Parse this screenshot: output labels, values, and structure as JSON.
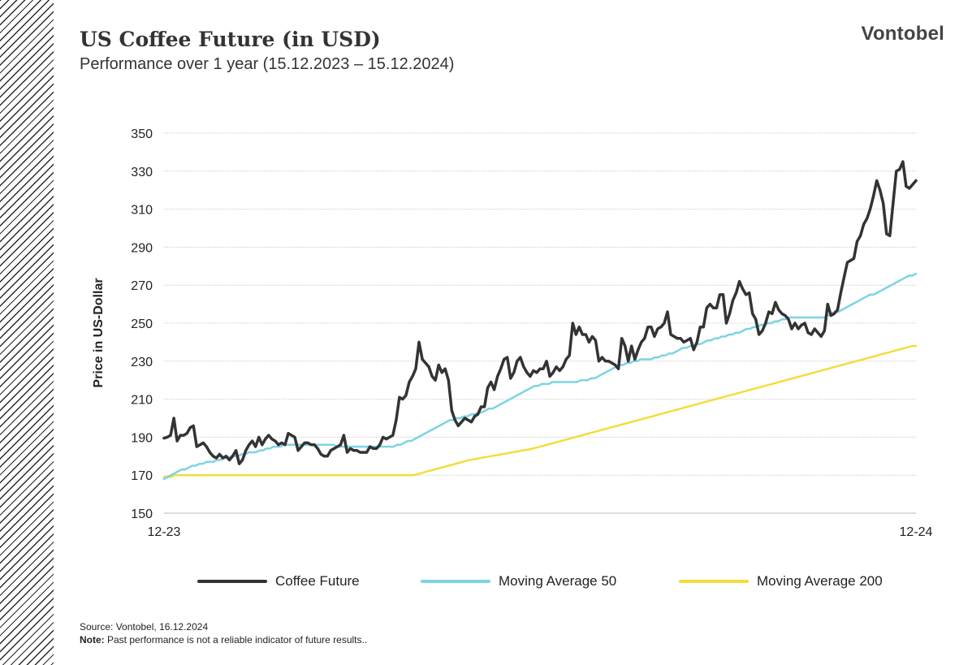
{
  "header": {
    "title": "US Coffee Future (in USD)",
    "subtitle": "Performance over 1 year (15.12.2023 – 15.12.2024)",
    "brand": "Vontobel"
  },
  "footer": {
    "source": "Source: Vontobel,  16.12.2024",
    "note_label": "Note:",
    "note_text": " Past performance  is not a reliable indicator of future results.."
  },
  "chart_data": {
    "type": "line",
    "ylabel": "Price in US-Dollar",
    "xlabel": "",
    "ylim": [
      150,
      350
    ],
    "yticks": [
      150,
      170,
      190,
      210,
      230,
      250,
      270,
      290,
      310,
      330,
      350
    ],
    "xtick_labels": [
      "12-23",
      "12-24"
    ],
    "grid": "horizontal",
    "legend_position": "bottom",
    "series": [
      {
        "name": "Coffee Future",
        "color": "#333333",
        "values": [
          189.5,
          190,
          191,
          200,
          188,
          191,
          191,
          192,
          195,
          196,
          185,
          186,
          187,
          185,
          182,
          180,
          179,
          181,
          179,
          180,
          178,
          180,
          183,
          176,
          178,
          183,
          186,
          188,
          185,
          190,
          186,
          189,
          191,
          189,
          188,
          186,
          187,
          186,
          192,
          191,
          190,
          183,
          185,
          187,
          187,
          186,
          186,
          184,
          181,
          180,
          180,
          183,
          184,
          185,
          186,
          191,
          182,
          184,
          183,
          183,
          182,
          182,
          182,
          185,
          184,
          184,
          186,
          190,
          189,
          190,
          191,
          199,
          211,
          210,
          212,
          219,
          222,
          226,
          240,
          231,
          229,
          227,
          222,
          220,
          228,
          224,
          226,
          220,
          204,
          199,
          196,
          198,
          200,
          199,
          198,
          201,
          202,
          206,
          206,
          216,
          219,
          215,
          222,
          226,
          231,
          232,
          221,
          224,
          230,
          232,
          227,
          224,
          222,
          225,
          224,
          226,
          226,
          230,
          222,
          224,
          227,
          225,
          227,
          231,
          233,
          250,
          244,
          248,
          244,
          244,
          240,
          243,
          241,
          230,
          232,
          230,
          230,
          229,
          228,
          226,
          242,
          238,
          230,
          238,
          231,
          236,
          240,
          242,
          248,
          248,
          243,
          247,
          248,
          250,
          256,
          244,
          243,
          242,
          242,
          240,
          241,
          242,
          236,
          240,
          248,
          248,
          258,
          260,
          258,
          258,
          265,
          265,
          250,
          255,
          262,
          266,
          272,
          268,
          265,
          266,
          255,
          252,
          244,
          246,
          250,
          256,
          255,
          261,
          257,
          255,
          254,
          252,
          247,
          250,
          247,
          249,
          250,
          245,
          244,
          247,
          245,
          243,
          246,
          260,
          254,
          255,
          257,
          266,
          274,
          282,
          283,
          284,
          293,
          296,
          302,
          305,
          310,
          317,
          325,
          320,
          313,
          297,
          296,
          313,
          330,
          331,
          335,
          322,
          321,
          323,
          325
        ]
      },
      {
        "name": "Moving Average 50",
        "color": "#7dd3e3",
        "values": [
          168,
          169,
          170,
          171,
          172,
          173,
          173,
          174,
          175,
          175,
          176,
          176,
          177,
          177,
          177,
          178,
          178,
          179,
          179,
          180,
          180,
          180,
          181,
          181,
          182,
          182,
          182,
          183,
          183,
          184,
          184,
          185,
          185,
          185,
          186,
          186,
          186,
          186,
          186,
          186,
          186,
          186,
          186,
          186,
          186,
          186,
          186,
          186,
          186,
          185,
          185,
          185,
          185,
          185,
          185,
          185,
          185,
          185,
          185,
          185,
          185,
          185,
          185,
          185,
          185,
          185,
          186,
          186,
          187,
          188,
          188,
          189,
          190,
          191,
          192,
          193,
          194,
          195,
          196,
          197,
          198,
          199,
          199,
          200,
          200,
          201,
          201,
          202,
          202,
          203,
          203,
          204,
          205,
          205,
          206,
          207,
          208,
          209,
          210,
          211,
          212,
          213,
          214,
          215,
          216,
          217,
          217,
          218,
          218,
          218,
          219,
          219,
          219,
          219,
          219,
          219,
          219,
          219,
          220,
          220,
          220,
          221,
          221,
          222,
          223,
          224,
          225,
          226,
          227,
          228,
          228,
          229,
          229,
          230,
          230,
          231,
          231,
          231,
          231,
          232,
          232,
          233,
          233,
          234,
          234,
          235,
          236,
          237,
          237,
          238,
          238,
          239,
          239,
          240,
          241,
          241,
          242,
          242,
          243,
          243,
          244,
          244,
          245,
          245,
          246,
          247,
          247,
          248,
          248,
          249,
          249,
          250,
          250,
          251,
          251,
          252,
          252,
          253,
          253,
          253,
          253,
          253,
          253,
          253,
          253,
          253,
          253,
          253,
          254,
          255,
          256,
          256,
          257,
          258,
          259,
          260,
          261,
          262,
          263,
          264,
          265,
          265,
          266,
          267,
          268,
          269,
          270,
          271,
          272,
          273,
          274,
          275,
          275,
          276
        ]
      },
      {
        "name": "Moving Average 200",
        "color": "#f5dc3c",
        "values": [
          169,
          169,
          169,
          170,
          170,
          170,
          170,
          170,
          170,
          170,
          170,
          170,
          170,
          170,
          170,
          170,
          170,
          170,
          170,
          170,
          170,
          170,
          170,
          170,
          170,
          170,
          170,
          170,
          170,
          170,
          170,
          170,
          170,
          170,
          170,
          170,
          170,
          170,
          170,
          170,
          170,
          170,
          170,
          170,
          170,
          170,
          170,
          170,
          170,
          170,
          170,
          170,
          170,
          170,
          170,
          170,
          170,
          170,
          170,
          170,
          170,
          170,
          170,
          170,
          170,
          170,
          170,
          170,
          170,
          170,
          170,
          170,
          170.5,
          171,
          171.5,
          172,
          172.5,
          173,
          173.5,
          174,
          174.5,
          175,
          175.5,
          176,
          176.5,
          177,
          177.5,
          178,
          178.3,
          178.6,
          179,
          179.3,
          179.6,
          180,
          180.3,
          180.6,
          181,
          181.3,
          181.6,
          182,
          182.3,
          182.6,
          183,
          183.3,
          183.6,
          184,
          184.5,
          185,
          185.5,
          186,
          186.5,
          187,
          187.5,
          188,
          188.5,
          189,
          189.5,
          190,
          190.5,
          191,
          191.5,
          192,
          192.5,
          193,
          193.5,
          194,
          194.5,
          195,
          195.5,
          196,
          196.5,
          197,
          197.5,
          198,
          198.5,
          199,
          199.5,
          200,
          200.5,
          201,
          201.5,
          202,
          202.5,
          203,
          203.5,
          204,
          204.5,
          205,
          205.5,
          206,
          206.5,
          207,
          207.5,
          208,
          208.5,
          209,
          209.5,
          210,
          210.5,
          211,
          211.5,
          212,
          212.5,
          213,
          213.5,
          214,
          214.5,
          215,
          215.5,
          216,
          216.5,
          217,
          217.5,
          218,
          218.5,
          219,
          219.5,
          220,
          220.5,
          221,
          221.5,
          222,
          222.5,
          223,
          223.5,
          224,
          224.5,
          225,
          225.5,
          226,
          226.5,
          227,
          227.5,
          228,
          228.5,
          229,
          229.5,
          230,
          230.5,
          231,
          231.5,
          232,
          232.5,
          233,
          233.5,
          234,
          234.5,
          235,
          235.5,
          236,
          236.5,
          237,
          237.5,
          238,
          238
        ]
      }
    ]
  }
}
